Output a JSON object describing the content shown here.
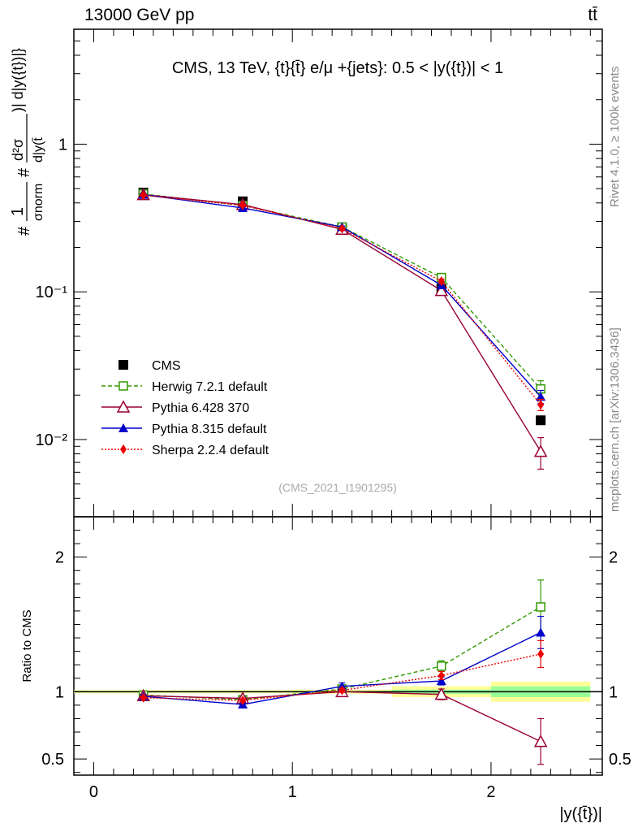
{
  "header": {
    "energy_label": "13000 GeV pp",
    "process_label": "tt̄"
  },
  "side_labels": {
    "rivet": "Rivet 4.1.0, ≥ 100k events",
    "source": "mcplots.cern.ch [arXiv:1306.3436]"
  },
  "chart_data": [
    {
      "type": "line",
      "title": "CMS, 13 TeV, {t}{t̄} e/μ +{jets}: 0.5 < |y({t})| < 1",
      "watermark": "(CMS_2021_I1901295)",
      "ylabel_parts": {
        "hash1": "#",
        "one": "1",
        "sigma_norm": "σnorm",
        "hash2": "#",
        "numer": "d²σ",
        "denom": "d|y(t̄",
        "right": ")| d|y({t})|}"
      },
      "yscale": "log",
      "ylim": [
        0.003,
        6
      ],
      "xlim": [
        -0.1,
        2.56
      ],
      "y_ticks": [
        {
          "value": 1,
          "label": "1"
        },
        {
          "value": 0.1,
          "label": "10⁻¹"
        },
        {
          "value": 0.01,
          "label": "10⁻²"
        }
      ],
      "x": [
        0.25,
        0.75,
        1.25,
        1.75,
        2.25
      ],
      "series": [
        {
          "name": "CMS",
          "color": "#000000",
          "marker": "square-filled",
          "dash": "none",
          "values": [
            0.47,
            0.41,
            0.27,
            0.105,
            0.0135
          ],
          "errors": [
            0.01,
            0.01,
            0.005,
            0.003,
            0.0005
          ]
        },
        {
          "name": "Herwig 7.2.1 default",
          "color": "#339900",
          "marker": "square-open",
          "dash": "5,3",
          "values": [
            0.46,
            0.385,
            0.275,
            0.125,
            0.022
          ],
          "errors": [
            0.005,
            0.005,
            0.004,
            0.004,
            0.003
          ]
        },
        {
          "name": "Pythia 6.428 370",
          "color": "#990033",
          "marker": "triangle-open",
          "dash": "none",
          "values": [
            0.455,
            0.39,
            0.265,
            0.102,
            0.0083
          ],
          "errors": [
            0.005,
            0.005,
            0.004,
            0.004,
            0.002
          ]
        },
        {
          "name": "Pythia 8.315 default",
          "color": "#0000cc",
          "marker": "triangle-filled",
          "dash": "none",
          "values": [
            0.455,
            0.37,
            0.275,
            0.111,
            0.0195
          ],
          "errors": [
            0.005,
            0.005,
            0.004,
            0.004,
            0.002
          ]
        },
        {
          "name": "Sherpa 2.2.4 default",
          "color": "#ee0000",
          "marker": "diamond-filled",
          "dash": "2,2",
          "values": [
            0.45,
            0.385,
            0.268,
            0.118,
            0.0172
          ],
          "errors": [
            0.005,
            0.005,
            0.004,
            0.004,
            0.0015
          ]
        }
      ]
    },
    {
      "type": "line",
      "title": "",
      "ylabel": "Ratio to CMS",
      "xlabel": "|y({t̄})|",
      "yscale": "linear",
      "ylim": [
        0.38,
        2.3
      ],
      "xlim": [
        -0.1,
        2.56
      ],
      "y_ticks": [
        {
          "value": 2,
          "label": "2"
        },
        {
          "value": 1,
          "label": "1"
        },
        {
          "value": 0.5,
          "label": "0.5"
        }
      ],
      "x_ticks": [
        {
          "value": 0,
          "label": "0"
        },
        {
          "value": 1,
          "label": "1"
        },
        {
          "value": 2,
          "label": "2"
        }
      ],
      "x": [
        0.25,
        0.75,
        1.25,
        1.75,
        2.25
      ],
      "uncertainty_bands": [
        {
          "x0": -0.1,
          "x1": 1.0,
          "stat": 0.005,
          "total": 0.012
        },
        {
          "x0": 1.0,
          "x1": 1.5,
          "stat": 0.006,
          "total": 0.015
        },
        {
          "x0": 1.5,
          "x1": 2.0,
          "stat": 0.015,
          "total": 0.04
        },
        {
          "x0": 2.0,
          "x1": 2.5,
          "stat": 0.04,
          "total": 0.075
        }
      ],
      "series": [
        {
          "name": "Herwig 7.2.1 default",
          "color": "#339900",
          "marker": "square-open",
          "dash": "5,3",
          "values": [
            0.975,
            0.94,
            1.02,
            1.19,
            1.63
          ],
          "errors": [
            0.01,
            0.01,
            0.015,
            0.04,
            0.2
          ]
        },
        {
          "name": "Pythia 6.428 370",
          "color": "#990033",
          "marker": "triangle-open",
          "dash": "none",
          "values": [
            0.97,
            0.95,
            1.0,
            0.98,
            0.63
          ],
          "errors": [
            0.01,
            0.01,
            0.015,
            0.04,
            0.17
          ]
        },
        {
          "name": "Pythia 8.315 default",
          "color": "#0000cc",
          "marker": "triangle-filled",
          "dash": "none",
          "values": [
            0.965,
            0.905,
            1.04,
            1.08,
            1.44
          ],
          "errors": [
            0.01,
            0.015,
            0.025,
            0.03,
            0.12
          ]
        },
        {
          "name": "Sherpa 2.2.4 default",
          "color": "#ee0000",
          "marker": "diamond-filled",
          "dash": "2,2",
          "values": [
            0.955,
            0.935,
            1.01,
            1.12,
            1.28
          ],
          "errors": [
            0.01,
            0.01,
            0.015,
            0.03,
            0.1
          ]
        }
      ]
    }
  ]
}
